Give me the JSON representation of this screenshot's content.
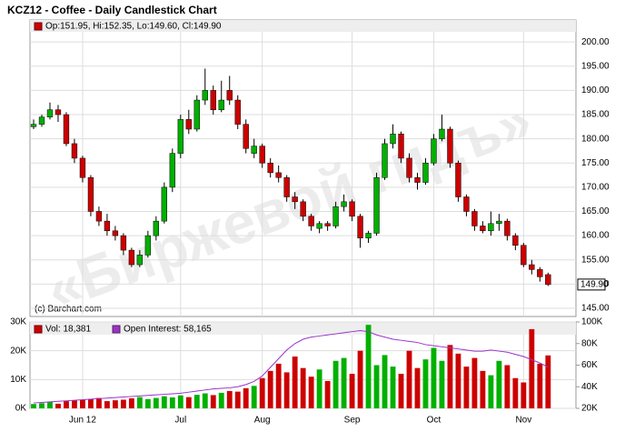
{
  "chart_data": {
    "type": "candlestick",
    "title": "KCZ12 - Coffee - Daily Candlestick Chart",
    "legend": "Op:151.95, Hi:152.35, Lo:149.60, Cl:149.90",
    "credit": "(c) Barchart.com",
    "watermark": "«Биржевой гидъ»",
    "up_color": "#00b000",
    "down_color": "#cc0000",
    "oi_color": "#9933cc",
    "grid": true,
    "categories": [
      null,
      null,
      null,
      null,
      null,
      null,
      "Jun 12",
      null,
      null,
      null,
      null,
      null,
      null,
      null,
      null,
      null,
      null,
      null,
      "Jul",
      null,
      null,
      null,
      null,
      null,
      null,
      null,
      null,
      null,
      "Aug",
      null,
      null,
      null,
      null,
      null,
      null,
      null,
      null,
      null,
      null,
      "Sep",
      null,
      null,
      null,
      null,
      null,
      null,
      null,
      null,
      null,
      "Oct",
      null,
      null,
      null,
      null,
      null,
      null,
      null,
      null,
      null,
      null,
      "Nov",
      null,
      null,
      null
    ],
    "open": [
      182.5,
      183,
      184.5,
      186,
      185,
      179,
      176,
      172,
      165,
      163,
      161,
      160,
      157,
      154,
      156,
      160,
      163,
      170,
      177,
      184,
      182,
      188,
      190,
      186,
      190,
      188,
      183,
      177,
      178.5,
      175,
      173,
      172,
      168,
      167,
      164,
      161.5,
      162.5,
      162,
      166,
      167,
      164,
      159.5,
      160.5,
      172,
      179,
      181,
      176,
      172,
      171,
      175,
      180,
      182,
      175,
      168,
      165,
      162,
      161,
      162.5,
      163,
      160,
      158,
      154,
      153,
      151.95
    ],
    "high": [
      184,
      185,
      187.5,
      187,
      185.5,
      180,
      176.5,
      172.5,
      166,
      164.5,
      162,
      160.5,
      157.5,
      157,
      161,
      164,
      171,
      178,
      185,
      186,
      189,
      194.5,
      191,
      192,
      193,
      189,
      184,
      180,
      179,
      176,
      174.5,
      172.5,
      169,
      167.5,
      164.5,
      163,
      163,
      167,
      168.5,
      167.5,
      164.5,
      161,
      173,
      180,
      183,
      181.5,
      177,
      173,
      176,
      181,
      185,
      182.5,
      175.5,
      168.5,
      165.5,
      163,
      165,
      164.5,
      163.5,
      160.5,
      158.5,
      155,
      153.5,
      152.35
    ],
    "low": [
      182,
      182.5,
      184,
      183.5,
      178.5,
      175,
      171,
      164,
      162,
      160,
      159,
      156,
      153.5,
      153.5,
      155.5,
      159,
      162.5,
      169,
      176,
      181,
      181.5,
      187,
      185,
      185.5,
      187,
      182,
      177,
      176,
      174,
      172,
      171,
      167,
      165.5,
      163,
      161,
      160.5,
      161,
      161.5,
      165,
      163,
      157.5,
      158.5,
      160,
      171.5,
      178,
      175,
      171,
      169.5,
      170.5,
      174.5,
      179.5,
      174,
      167,
      164,
      161,
      160.5,
      160,
      161,
      159,
      157,
      153.5,
      152,
      150.5,
      149.6
    ],
    "close": [
      183,
      184.5,
      186,
      185,
      179,
      176,
      172,
      165,
      163,
      161,
      160,
      157,
      154,
      156,
      160,
      163,
      170,
      177,
      184,
      182,
      188,
      190,
      186,
      188,
      188,
      183,
      178,
      178.5,
      175,
      173,
      172,
      168,
      167,
      164,
      162,
      162.5,
      162,
      166,
      167,
      164,
      159.5,
      160.5,
      172,
      179,
      181,
      176,
      172,
      171,
      175,
      180,
      182,
      175,
      168,
      165,
      162,
      161,
      162.5,
      163,
      160,
      158,
      154,
      153,
      151.5,
      149.9
    ],
    "ylim": [
      143.3,
      202.1
    ],
    "yticks": [
      {
        "value": 145,
        "label": "145.00"
      },
      {
        "value": 150,
        "label": "150.00"
      },
      {
        "value": 155,
        "label": "155.00"
      },
      {
        "value": 160,
        "label": "160.00"
      },
      {
        "value": 165,
        "label": "165.00"
      },
      {
        "value": 170,
        "label": "170.00"
      },
      {
        "value": 175,
        "label": "175.00"
      },
      {
        "value": 180,
        "label": "180.00"
      },
      {
        "value": 185,
        "label": "185.00"
      },
      {
        "value": 190,
        "label": "190.00"
      },
      {
        "value": 195,
        "label": "195.00"
      },
      {
        "value": 200,
        "label": "200.00"
      }
    ],
    "last_price": {
      "value": 149.9,
      "label": "149.90"
    },
    "volume_legend": "Vol: 18,381",
    "oi_legend": "Open Interest: 58,165",
    "volume": [
      1500,
      1800,
      2200,
      1600,
      2500,
      2800,
      3000,
      3200,
      3600,
      2500,
      2800,
      3000,
      3500,
      3900,
      3200,
      3600,
      4200,
      3800,
      4500,
      3900,
      4700,
      5200,
      4600,
      5400,
      6000,
      5800,
      7000,
      7800,
      10500,
      13000,
      15500,
      12500,
      18000,
      14000,
      11000,
      13500,
      9500,
      16500,
      17500,
      12000,
      20000,
      29000,
      15000,
      18500,
      14500,
      12000,
      20000,
      14000,
      17000,
      21000,
      16500,
      22000,
      19000,
      14500,
      17500,
      13000,
      11500,
      16500,
      15000,
      10500,
      9000,
      27500,
      15500,
      18381
    ],
    "open_interest": [
      25000,
      25500,
      26000,
      26500,
      27000,
      27500,
      28000,
      28500,
      29000,
      29500,
      30000,
      30500,
      31000,
      31500,
      32000,
      32500,
      33000,
      33500,
      34000,
      35000,
      36000,
      37000,
      38000,
      38500,
      39000,
      40000,
      42000,
      45000,
      50000,
      58000,
      66000,
      74000,
      80000,
      84000,
      86000,
      87000,
      88000,
      89000,
      90000,
      91000,
      92000,
      91000,
      88000,
      86000,
      84000,
      83000,
      82000,
      81000,
      79000,
      78000,
      77000,
      76000,
      75000,
      74000,
      73000,
      73000,
      74000,
      73000,
      72000,
      70000,
      68000,
      65000,
      62000,
      58165
    ],
    "vol_ylim": [
      0,
      30000
    ],
    "vol_yticks": [
      {
        "value": 0,
        "label": "0K"
      },
      {
        "value": 10000,
        "label": "10K"
      },
      {
        "value": 20000,
        "label": "20K"
      },
      {
        "value": 30000,
        "label": "30K"
      }
    ],
    "y2lim": [
      20000,
      100000
    ],
    "y2ticks": [
      {
        "value": 20000,
        "label": "20K"
      },
      {
        "value": 40000,
        "label": "40K"
      },
      {
        "value": 60000,
        "label": "60K"
      },
      {
        "value": 80000,
        "label": "80K"
      },
      {
        "value": 100000,
        "label": "100K"
      }
    ]
  }
}
